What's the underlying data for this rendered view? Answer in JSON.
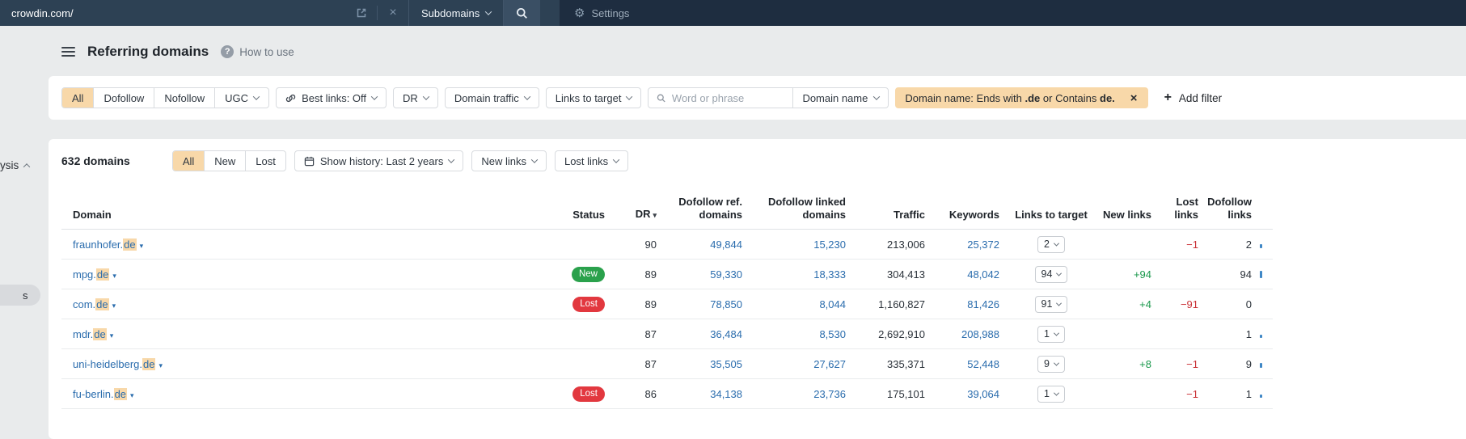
{
  "topbar": {
    "url_value": "crowdin.com/",
    "mode_label": "Subdomains",
    "settings_label": "Settings"
  },
  "sidebar": {
    "fragment_analysis": "ysis",
    "fragment_item": "s"
  },
  "header": {
    "title": "Referring domains",
    "help_label": "How to use"
  },
  "filters": {
    "follow_segments": [
      "All",
      "Dofollow",
      "Nofollow",
      "UGC"
    ],
    "best_links_label": "Best links: Off",
    "dr_label": "DR",
    "domain_traffic_label": "Domain traffic",
    "links_to_target_label": "Links to target",
    "search_placeholder": "Word or phrase",
    "search_scope_label": "Domain name",
    "chip": {
      "prefix": "Domain name: Ends with ",
      "bold1": ".de",
      "mid": " or Contains ",
      "bold2": "de."
    },
    "add_filter_label": "Add filter"
  },
  "toolbar": {
    "count_label": "632 domains",
    "status_segments": [
      "All",
      "New",
      "Lost"
    ],
    "show_history_label": "Show history: Last 2 years",
    "new_links_label": "New links",
    "lost_links_label": "Lost links"
  },
  "table": {
    "headers": {
      "domain": "Domain",
      "status": "Status",
      "dr": "DR",
      "dofollow_ref_1": "Dofollow ref.",
      "dofollow_ref_2": "domains",
      "dofollow_linked_1": "Dofollow linked",
      "dofollow_linked_2": "domains",
      "traffic": "Traffic",
      "keywords": "Keywords",
      "links_to_target": "Links to target",
      "new_links": "New links",
      "lost_links": "Lost links",
      "dofollow_links_1": "Dofollow",
      "dofollow_links_2": "links"
    },
    "rows": [
      {
        "domain_prefix": "fraunhofer.",
        "domain_highlight": "de",
        "status": "",
        "dr": "90",
        "dofollow_ref": "49,844",
        "dofollow_linked": "15,230",
        "traffic": "213,006",
        "keywords": "25,372",
        "links_to_target": "2",
        "new_links": "",
        "lost_links": "−1",
        "dofollow_links": "2",
        "bar": 5
      },
      {
        "domain_prefix": "mpg.",
        "domain_highlight": "de",
        "status": "New",
        "dr": "89",
        "dofollow_ref": "59,330",
        "dofollow_linked": "18,333",
        "traffic": "304,413",
        "keywords": "48,042",
        "links_to_target": "94",
        "new_links": "+94",
        "lost_links": "",
        "dofollow_links": "94",
        "bar": 9
      },
      {
        "domain_prefix": "com.",
        "domain_highlight": "de",
        "status": "Lost",
        "dr": "89",
        "dofollow_ref": "78,850",
        "dofollow_linked": "8,044",
        "traffic": "1,160,827",
        "keywords": "81,426",
        "links_to_target": "91",
        "new_links": "+4",
        "lost_links": "−91",
        "dofollow_links": "0",
        "bar": 0
      },
      {
        "domain_prefix": "mdr.",
        "domain_highlight": "de",
        "status": "",
        "dr": "87",
        "dofollow_ref": "36,484",
        "dofollow_linked": "8,530",
        "traffic": "2,692,910",
        "keywords": "208,988",
        "links_to_target": "1",
        "new_links": "",
        "lost_links": "",
        "dofollow_links": "1",
        "bar": 4
      },
      {
        "domain_prefix": "uni-heidelberg.",
        "domain_highlight": "de",
        "status": "",
        "dr": "87",
        "dofollow_ref": "35,505",
        "dofollow_linked": "27,627",
        "traffic": "335,371",
        "keywords": "52,448",
        "links_to_target": "9",
        "new_links": "+8",
        "lost_links": "−1",
        "dofollow_links": "9",
        "bar": 6
      },
      {
        "domain_prefix": "fu-berlin.",
        "domain_highlight": "de",
        "status": "Lost",
        "dr": "86",
        "dofollow_ref": "34,138",
        "dofollow_linked": "23,736",
        "traffic": "175,101",
        "keywords": "39,064",
        "links_to_target": "1",
        "new_links": "",
        "lost_links": "−1",
        "dofollow_links": "1",
        "bar": 4
      }
    ]
  },
  "icons": {
    "caret_down": "▾",
    "sort_down": "▾",
    "close": "×",
    "plus": "+",
    "question": "?",
    "gear": "⚙"
  },
  "colors": {
    "accent_peach": "#f8d8a9",
    "link_blue": "#2a6cad",
    "badge_new_green": "#2aa14c",
    "badge_lost_red": "#e2383f",
    "positive_green": "#19984b",
    "negative_red": "#ca3136",
    "topbar_navy": "#1e2d40"
  }
}
